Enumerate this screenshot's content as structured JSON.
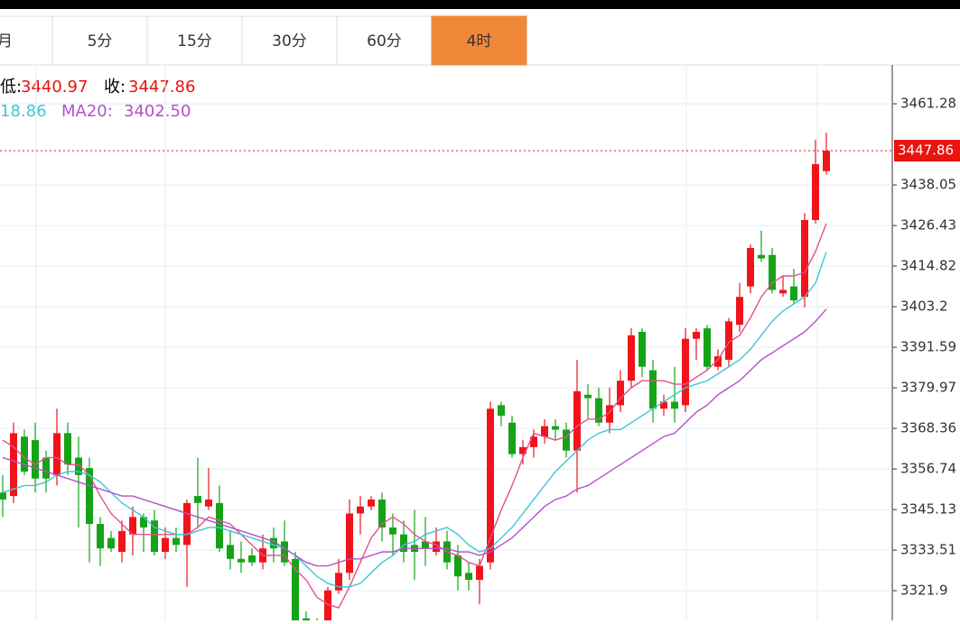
{
  "tabs": [
    "月",
    "5分",
    "15分",
    "30分",
    "60分",
    "4时"
  ],
  "active_tab": 5,
  "info": {
    "low_label": "低:",
    "low": "3440.97",
    "close_label": "收:",
    "close": "3447.86",
    "ma10_tail": "18.86",
    "ma20_label": "MA20:",
    "ma20": "3402.50"
  },
  "chart_data": {
    "type": "candlestick",
    "up_color": "#f0141a",
    "down_color": "#16a317",
    "ylim": [
      3313.4,
      3472.4
    ],
    "yticks": [
      3461.28,
      3438.05,
      3426.43,
      3414.82,
      3403.2,
      3391.59,
      3379.97,
      3368.36,
      3356.74,
      3345.13,
      3333.51,
      3321.9
    ],
    "grid": true,
    "last_price": 3447.86,
    "open": [
      3350,
      3349,
      3366,
      3365,
      3360,
      3355,
      3367,
      3360,
      3357,
      3341,
      3337,
      3333,
      3338,
      3343,
      3342,
      3333,
      3337,
      3335,
      3349,
      3346,
      3347,
      3335,
      3331,
      3332,
      3330,
      3337,
      3336,
      3331,
      3314,
      3313,
      3311,
      3322,
      3327,
      3344,
      3346,
      3348,
      3340,
      3338,
      3335,
      3336,
      3333,
      3336,
      3332,
      3327,
      3325,
      3330,
      3375,
      3370,
      3361,
      3363,
      3366,
      3369,
      3368,
      3362,
      3378,
      3377,
      3370,
      3375,
      3382,
      3396,
      3385,
      3374,
      3376,
      3375,
      3394,
      3397,
      3386,
      3388,
      3398,
      3409,
      3418,
      3418,
      3407,
      3409,
      3406,
      3428,
      3442
    ],
    "high": [
      3355,
      3370,
      3368,
      3370,
      3362,
      3374,
      3370,
      3366,
      3360,
      3343,
      3339,
      3342,
      3346,
      3344,
      3345,
      3340,
      3340,
      3348,
      3360,
      3357,
      3352,
      3339,
      3336,
      3334,
      3338,
      3340,
      3342,
      3333,
      3316,
      3314,
      3323,
      3331,
      3348,
      3349,
      3349,
      3350,
      3344,
      3342,
      3345,
      3343,
      3340,
      3339,
      3335,
      3330,
      3331,
      3376,
      3376,
      3372,
      3365,
      3368,
      3371,
      3371,
      3370,
      3388,
      3381,
      3380,
      3380,
      3385,
      3397,
      3397,
      3388,
      3378,
      3386,
      3397,
      3397,
      3398,
      3391,
      3400,
      3410,
      3421,
      3425,
      3420,
      3412,
      3414,
      3430,
      3451,
      3453
    ],
    "low": [
      3343,
      3347,
      3355,
      3350,
      3350,
      3352,
      3355,
      3340,
      3330,
      3329,
      3333,
      3330,
      3332,
      3333,
      3332,
      3331,
      3333,
      3323,
      3340,
      3345,
      3333,
      3328,
      3327,
      3329,
      3328,
      3330,
      3329,
      3311,
      3311,
      3310,
      3309,
      3321,
      3325,
      3338,
      3345,
      3336,
      3332,
      3330,
      3325,
      3329,
      3332,
      3328,
      3322,
      3322,
      3318,
      3328,
      3369,
      3360,
      3358,
      3360,
      3364,
      3365,
      3360,
      3350,
      3371,
      3369,
      3367,
      3373,
      3380,
      3383,
      3370,
      3372,
      3370,
      3373,
      3388,
      3385,
      3385,
      3386,
      3396,
      3407,
      3416,
      3407,
      3406,
      3404,
      3403,
      3427,
      3440.97
    ],
    "close": [
      3348,
      3367,
      3356,
      3354,
      3354,
      3367,
      3358,
      3355,
      3341,
      3334,
      3334,
      3339,
      3343,
      3340,
      3333,
      3337,
      3335,
      3347,
      3347,
      3348,
      3334,
      3331,
      3330,
      3330,
      3334,
      3334,
      3330,
      3313,
      3313,
      3311,
      3322,
      3327,
      3344,
      3346,
      3348,
      3340,
      3338,
      3333,
      3333,
      3334,
      3336,
      3330,
      3326,
      3325,
      3329,
      3374,
      3372,
      3361,
      3363,
      3366,
      3369,
      3368,
      3362,
      3379,
      3377,
      3370,
      3375,
      3382,
      3395,
      3386,
      3374,
      3376,
      3374,
      3394,
      3396,
      3386,
      3389,
      3399,
      3406,
      3420,
      3417,
      3408,
      3408,
      3405,
      3428,
      3444,
      3447.86
    ],
    "lines": [
      {
        "color": "#e4508c",
        "values": [
          3365,
          3363,
          3360,
          3358,
          3360,
          3360,
          3358,
          3358,
          3355,
          3349,
          3344,
          3341,
          3338,
          3338,
          3338,
          3338,
          3338,
          3338,
          3340,
          3343,
          3342,
          3341,
          3338,
          3335,
          3332,
          3332,
          3332,
          3328,
          3325,
          3320,
          3318,
          3317,
          3323,
          3330,
          3337,
          3341,
          3343,
          3341,
          3338,
          3336,
          3335,
          3333,
          3332,
          3330,
          3329,
          3337,
          3345,
          3352,
          3360,
          3367,
          3366,
          3365,
          3366,
          3369,
          3371,
          3371,
          3373,
          3377,
          3380,
          3382,
          3382,
          3382,
          3381,
          3381,
          3383,
          3385,
          3388,
          3393,
          3395,
          3400,
          3406,
          3410,
          3412,
          3412,
          3413,
          3419,
          3427
        ]
      },
      {
        "color": "#3cc6d8",
        "values": [
          3350,
          3351,
          3352,
          3352,
          3353,
          3355,
          3356,
          3356,
          3355,
          3353,
          3350,
          3347,
          3345,
          3343,
          3340,
          3339,
          3338,
          3338,
          3339,
          3340,
          3340,
          3339,
          3338,
          3337,
          3336,
          3335,
          3334,
          3332,
          3329,
          3326,
          3324,
          3323,
          3323,
          3324,
          3327,
          3330,
          3332,
          3335,
          3336,
          3338,
          3339,
          3340,
          3338,
          3335,
          3333,
          3334,
          3337,
          3340,
          3344,
          3348,
          3352,
          3356,
          3359,
          3362,
          3365,
          3367,
          3368,
          3368,
          3370,
          3372,
          3374,
          3376,
          3378,
          3380,
          3381,
          3382,
          3384,
          3386,
          3388,
          3391,
          3395,
          3399,
          3402,
          3404,
          3406,
          3410,
          3418.86
        ]
      },
      {
        "color": "#b352c6",
        "values": [
          3360,
          3359,
          3358,
          3357,
          3356,
          3355,
          3354,
          3353,
          3352,
          3351,
          3350,
          3349,
          3349,
          3348,
          3347,
          3346,
          3345,
          3344,
          3343,
          3342,
          3341,
          3340,
          3339,
          3338,
          3337,
          3336,
          3334,
          3332,
          3330,
          3329,
          3329,
          3330,
          3331,
          3331,
          3332,
          3333,
          3333,
          3334,
          3334,
          3334,
          3334,
          3334,
          3333,
          3333,
          3332,
          3333,
          3335,
          3337,
          3340,
          3343,
          3346,
          3348,
          3349,
          3351,
          3352,
          3354,
          3356,
          3358,
          3360,
          3362,
          3364,
          3366,
          3367,
          3370,
          3373,
          3375,
          3378,
          3380,
          3382,
          3385,
          3388,
          3390,
          3392,
          3394,
          3396,
          3399,
          3402.5
        ]
      }
    ]
  }
}
